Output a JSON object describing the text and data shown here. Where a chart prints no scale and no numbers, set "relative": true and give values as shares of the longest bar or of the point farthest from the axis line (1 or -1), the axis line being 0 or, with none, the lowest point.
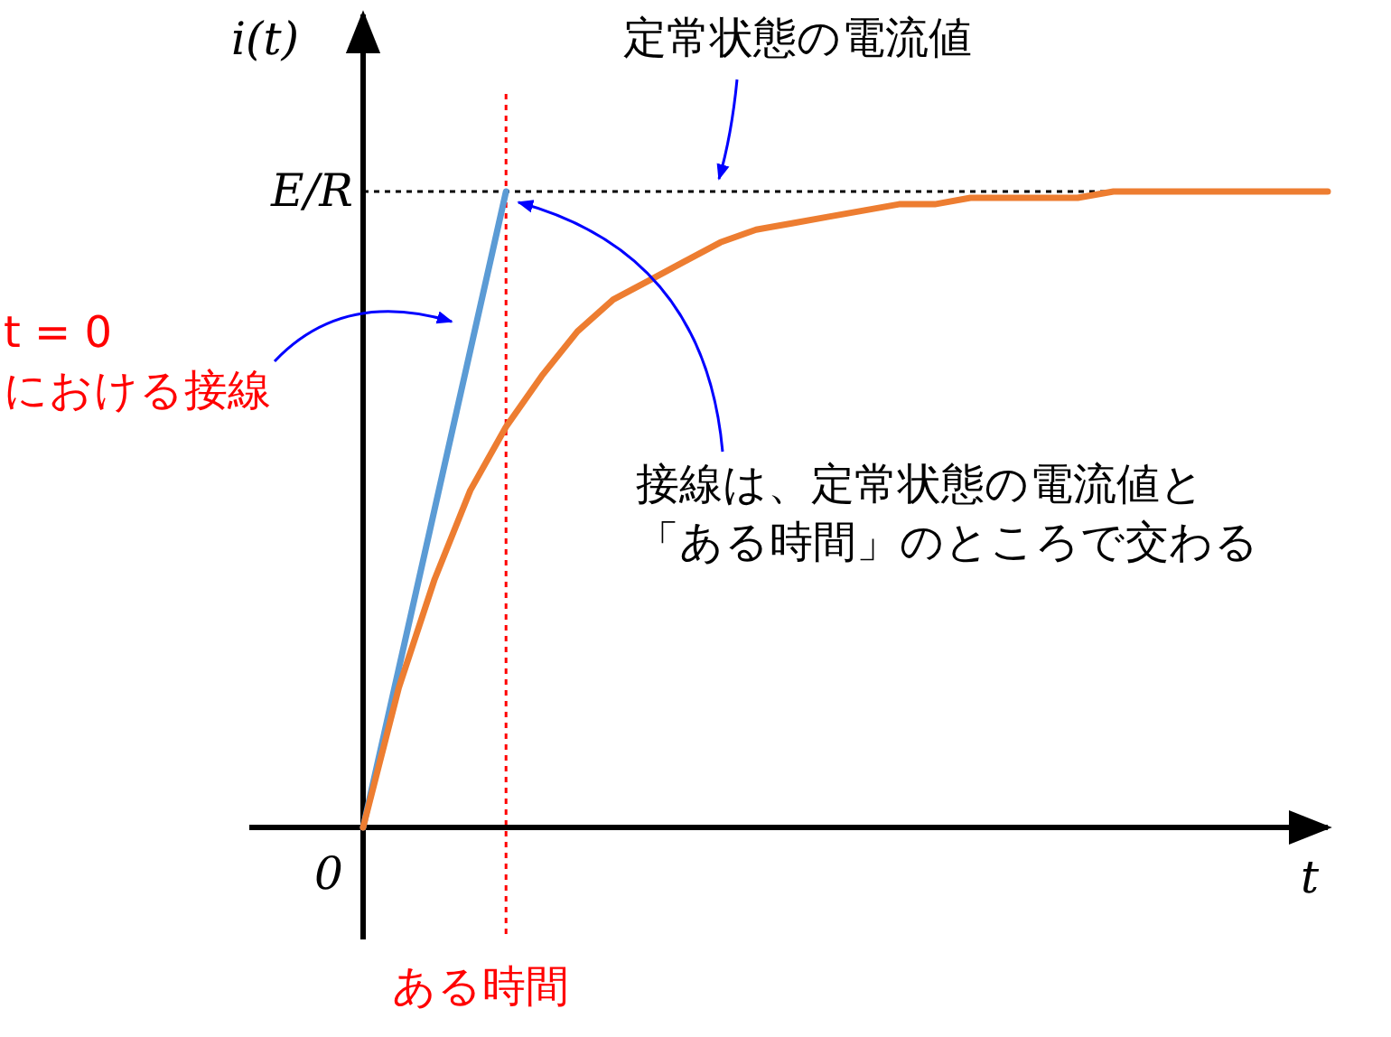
{
  "chart_data": {
    "type": "line",
    "relative": true,
    "xlabel": "t",
    "ylabel": "i(t)",
    "categories": [
      null,
      null,
      null,
      null,
      null,
      null,
      null,
      null,
      null,
      null,
      null,
      null,
      null,
      null,
      null,
      null,
      null,
      null,
      null,
      null,
      null,
      null,
      null,
      null,
      null,
      null,
      null,
      null
    ],
    "series": [
      {
        "color": "#5b9bd5",
        "values": [
          0,
          0.25,
          0.5,
          0.75,
          1,
          null,
          null,
          null,
          null,
          null,
          null,
          null,
          null,
          null,
          null,
          null,
          null,
          null,
          null,
          null,
          null,
          null,
          null,
          null,
          null,
          null,
          null,
          null
        ]
      },
      {
        "color": "#ed7d31",
        "values": [
          0,
          0.22,
          0.39,
          0.53,
          0.63,
          0.71,
          0.78,
          0.83,
          0.86,
          0.89,
          0.92,
          0.94,
          0.95,
          0.96,
          0.97,
          0.98,
          0.98,
          0.99,
          0.99,
          0.99,
          0.99,
          1,
          1,
          1,
          1,
          1,
          1,
          1
        ]
      }
    ],
    "ref_lines": [
      {
        "axis": "y",
        "value": 1,
        "label": "E/R",
        "color": "#000000",
        "line_style": "dotted"
      }
    ],
    "annotations": [
      {
        "text": "定常状態の電流値",
        "y": 1
      },
      "t = 0 における接線",
      "接線は、定常状態の電流値と「ある時間」のところで交わる",
      "ある時間",
      "0"
    ]
  }
}
